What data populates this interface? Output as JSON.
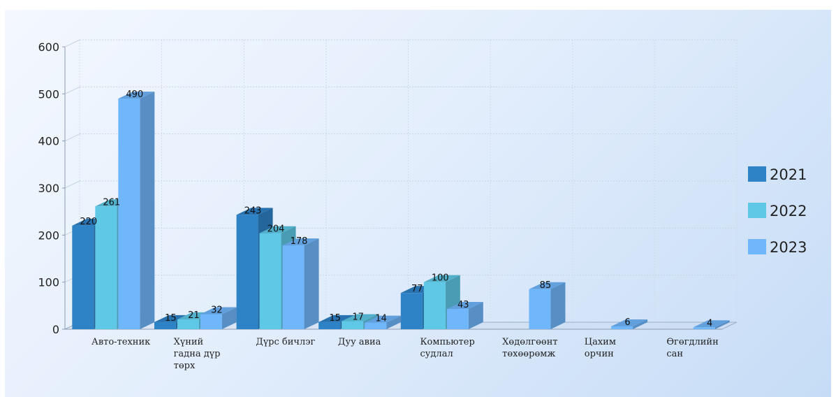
{
  "chart_data": {
    "type": "bar",
    "categories": [
      [
        "Авто-техник"
      ],
      [
        "Хүний",
        "гадна дүр",
        "төрх"
      ],
      [
        "Дүрс бичлэг"
      ],
      [
        "Дуу авиа"
      ],
      [
        "Компьютер",
        "судлал"
      ],
      [
        "Хөдөлгөөнт",
        "төхөөрөмж"
      ],
      [
        "Цахим",
        "орчин"
      ],
      [
        "Өгөгдлийн",
        "сан"
      ]
    ],
    "series": [
      {
        "name": "2021",
        "color": "#2e83c7",
        "values": [
          220,
          15,
          243,
          15,
          77,
          null,
          null,
          null
        ]
      },
      {
        "name": "2022",
        "color": "#5ec8e6",
        "values": [
          261,
          21,
          204,
          17,
          100,
          null,
          null,
          null
        ]
      },
      {
        "name": "2023",
        "color": "#6fb6fb",
        "values": [
          490,
          32,
          178,
          14,
          43,
          85,
          6,
          4
        ]
      }
    ],
    "data_labels": [
      [
        "220",
        "15",
        "243",
        "15",
        "77",
        "",
        "",
        ""
      ],
      [
        "261",
        "21",
        "204",
        "17",
        "100",
        "",
        "",
        ""
      ],
      [
        "490",
        "32",
        "178",
        "14",
        "43",
        "85",
        "6",
        "4"
      ]
    ],
    "y_ticks": [
      "0",
      "100",
      "200",
      "300",
      "400",
      "500",
      "600"
    ],
    "ylim": [
      0,
      600
    ],
    "grid": true,
    "legend_position": "right",
    "style": "3d-bar"
  }
}
